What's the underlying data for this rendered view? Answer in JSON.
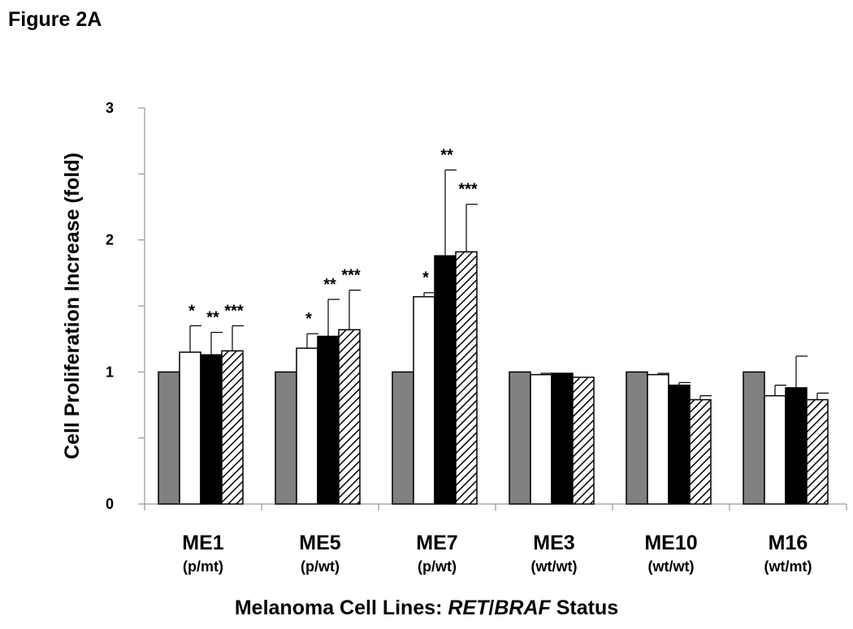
{
  "figure_title": "Figure 2A",
  "chart_data": {
    "type": "bar",
    "title": "Figure 2A",
    "ylabel": "Cell Proliferation Increase (fold)",
    "xlabel": "Melanoma Cell Lines: RET/BRAF Status",
    "xlabel_parts": [
      "Melanoma Cell Lines: ",
      "RET",
      "/",
      "BRAF",
      " Status"
    ],
    "ylim": [
      0,
      3
    ],
    "yticks": [
      "0",
      "1",
      "2",
      "3"
    ],
    "categories": [
      "ME1",
      "ME5",
      "ME7",
      "ME3",
      "ME10",
      "M16"
    ],
    "category_status": [
      "(p/mt)",
      "(p/wt)",
      "(p/wt)",
      "(wt/wt)",
      "(wt/wt)",
      "(wt/mt)"
    ],
    "legend": "none",
    "series": [
      {
        "name": "series-1",
        "style": "gray",
        "color": "#808080",
        "values": [
          1.0,
          1.0,
          1.0,
          1.0,
          1.0,
          1.0
        ],
        "errors": [
          0,
          0,
          0,
          0,
          0,
          0
        ],
        "annotations": [
          "",
          "",
          "",
          "",
          "",
          ""
        ]
      },
      {
        "name": "series-2",
        "style": "white",
        "color": "#ffffff",
        "values": [
          1.15,
          1.18,
          1.57,
          0.98,
          0.98,
          0.82
        ],
        "errors": [
          0.2,
          0.11,
          0.03,
          0.01,
          0.01,
          0.08
        ],
        "annotations": [
          "*",
          "*",
          "*",
          "",
          "",
          ""
        ]
      },
      {
        "name": "series-3",
        "style": "black",
        "color": "#000000",
        "values": [
          1.13,
          1.27,
          1.88,
          0.99,
          0.9,
          0.88
        ],
        "errors": [
          0.17,
          0.28,
          0.65,
          0,
          0.02,
          0.24
        ],
        "annotations": [
          "**",
          "**",
          "**",
          "",
          "",
          ""
        ]
      },
      {
        "name": "series-4",
        "style": "hatched",
        "color": "#000000",
        "values": [
          1.16,
          1.32,
          1.91,
          0.96,
          0.79,
          0.79
        ],
        "errors": [
          0.19,
          0.3,
          0.36,
          0,
          0.03,
          0.05
        ],
        "annotations": [
          "***",
          "***",
          "***",
          "",
          "",
          ""
        ]
      }
    ]
  }
}
